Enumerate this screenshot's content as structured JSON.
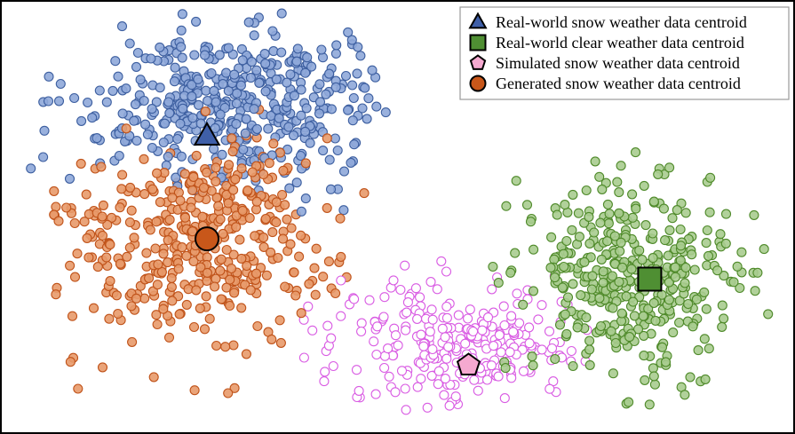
{
  "chart_data": {
    "type": "scatter",
    "title": "",
    "xlabel": "",
    "ylabel": "",
    "axes": "hidden",
    "frame": true,
    "grid": false,
    "legend_position": "top-right",
    "xlim": [
      0,
      100
    ],
    "ylim": [
      0,
      100
    ],
    "clusters": [
      {
        "key": "blue",
        "fill": "#8fa9d9",
        "stroke": "#3d5fa0",
        "filled": true,
        "center": [
          30,
          77
        ],
        "spread": [
          10,
          9
        ],
        "count": 450,
        "seed": 11,
        "bounds": [
          1,
          49,
          49,
          99
        ]
      },
      {
        "key": "orange",
        "fill": "#e89a6a",
        "stroke": "#c0531a",
        "filled": true,
        "center": [
          24,
          44
        ],
        "spread": [
          9,
          12
        ],
        "count": 430,
        "seed": 23,
        "bounds": [
          6,
          47,
          4,
          77
        ]
      },
      {
        "key": "pink",
        "fill": "#ffffff",
        "stroke": "#d95ce3",
        "filled": false,
        "center": [
          58,
          20
        ],
        "spread": [
          8,
          7
        ],
        "count": 280,
        "seed": 37,
        "bounds": [
          38,
          75,
          3,
          45
        ]
      },
      {
        "key": "green",
        "fill": "#a8cc8f",
        "stroke": "#4f8a2a",
        "filled": true,
        "center": [
          80,
          36
        ],
        "spread": [
          7,
          12
        ],
        "count": 400,
        "seed": 53,
        "bounds": [
          59,
          99,
          1,
          73
        ]
      }
    ],
    "centroids": [
      {
        "key": "blue",
        "shape": "triangle",
        "x": 25.6,
        "y": 69.3,
        "fill": "#3f5fa8",
        "stroke": "#000000",
        "label": "Real-world snow weather data centroid"
      },
      {
        "key": "green",
        "shape": "square",
        "x": 82.3,
        "y": 35.2,
        "fill": "#4f8f33",
        "stroke": "#000000",
        "label": "Real-world clear weather data centroid"
      },
      {
        "key": "pink",
        "shape": "pentagon",
        "x": 59.1,
        "y": 14.7,
        "fill": "#f5a9d0",
        "stroke": "#000000",
        "label": "Simulated snow weather data centroid"
      },
      {
        "key": "orange",
        "shape": "circle",
        "x": 25.6,
        "y": 44.8,
        "fill": "#c8571a",
        "stroke": "#000000",
        "label": "Generated snow weather data centroid"
      }
    ]
  }
}
